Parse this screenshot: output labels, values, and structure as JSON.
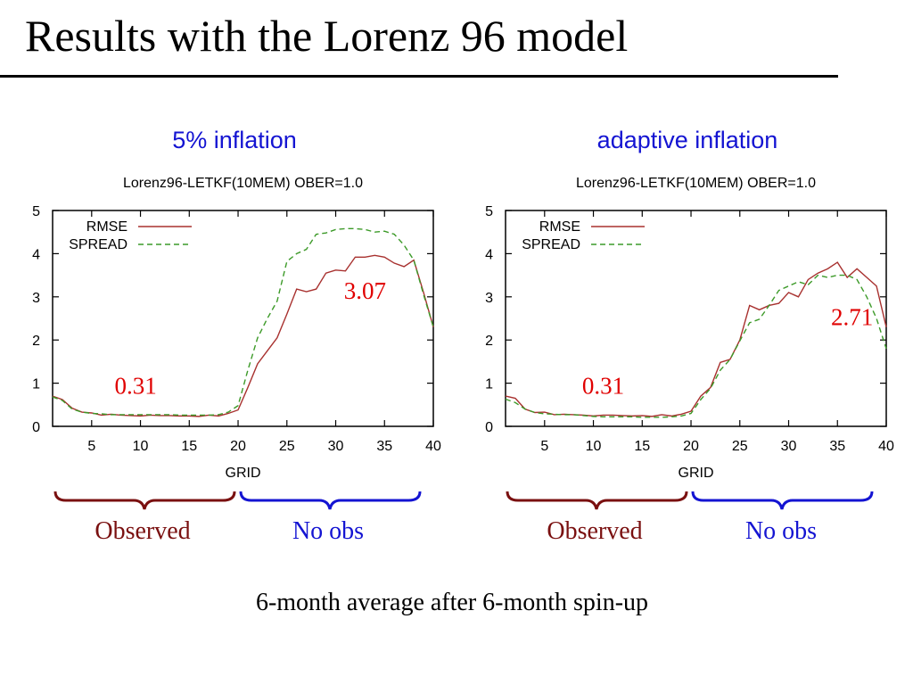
{
  "slide": {
    "title": "Results with the Lorenz 96 model",
    "footnote": "6-month average after 6-month spin-up"
  },
  "colors": {
    "rmse": "#a8312f",
    "spread": "#3c9a28",
    "heading": "#1414d2",
    "annotation": "#e00000",
    "observed": "#7a1010",
    "no_obs": "#1414d2"
  },
  "panels": [
    {
      "heading": "5% inflation",
      "annotations": [
        "0.31",
        "3.07"
      ],
      "region_labels": {
        "observed": "Observed",
        "no_obs": "No obs"
      }
    },
    {
      "heading": "adaptive inflation",
      "annotations": [
        "0.31",
        "2.71"
      ],
      "region_labels": {
        "observed": "Observed",
        "no_obs": "No obs"
      }
    }
  ],
  "chart_data": [
    {
      "type": "line",
      "title": "Lorenz96-LETKF(10MEM) OBER=1.0",
      "xlabel": "GRID",
      "ylabel": "",
      "xlim": [
        1,
        40
      ],
      "ylim": [
        0,
        5
      ],
      "xticks": [
        5,
        10,
        15,
        20,
        25,
        30,
        35,
        40
      ],
      "yticks": [
        0,
        1,
        2,
        3,
        4,
        5
      ],
      "grid": false,
      "legend": "top-left",
      "x": [
        1,
        2,
        3,
        4,
        5,
        6,
        7,
        8,
        9,
        10,
        11,
        12,
        13,
        14,
        15,
        16,
        17,
        18,
        19,
        20,
        21,
        22,
        23,
        24,
        25,
        26,
        27,
        28,
        29,
        30,
        31,
        32,
        33,
        34,
        35,
        36,
        37,
        38,
        39,
        40
      ],
      "series": [
        {
          "name": "RMSE",
          "values": [
            0.7,
            0.62,
            0.42,
            0.33,
            0.31,
            0.26,
            0.28,
            0.26,
            0.25,
            0.24,
            0.26,
            0.25,
            0.25,
            0.24,
            0.24,
            0.23,
            0.26,
            0.24,
            0.3,
            0.38,
            0.9,
            1.45,
            1.75,
            2.05,
            2.6,
            3.18,
            3.12,
            3.18,
            3.55,
            3.62,
            3.6,
            3.92,
            3.92,
            3.96,
            3.92,
            3.78,
            3.7,
            3.85,
            3.1,
            2.3
          ]
        },
        {
          "name": "SPREAD",
          "values": [
            0.68,
            0.6,
            0.4,
            0.33,
            0.3,
            0.29,
            0.27,
            0.27,
            0.27,
            0.27,
            0.27,
            0.27,
            0.27,
            0.26,
            0.26,
            0.26,
            0.26,
            0.27,
            0.33,
            0.48,
            1.3,
            2.05,
            2.5,
            2.9,
            3.82,
            4.0,
            4.1,
            4.45,
            4.48,
            4.56,
            4.58,
            4.58,
            4.56,
            4.5,
            4.52,
            4.45,
            4.2,
            3.85,
            3.05,
            2.3
          ]
        }
      ]
    },
    {
      "type": "line",
      "title": "Lorenz96-LETKF(10MEM) OBER=1.0",
      "xlabel": "GRID",
      "ylabel": "",
      "xlim": [
        1,
        40
      ],
      "ylim": [
        0,
        5
      ],
      "xticks": [
        5,
        10,
        15,
        20,
        25,
        30,
        35,
        40
      ],
      "yticks": [
        0,
        1,
        2,
        3,
        4,
        5
      ],
      "grid": false,
      "legend": "top-left",
      "x": [
        1,
        2,
        3,
        4,
        5,
        6,
        7,
        8,
        9,
        10,
        11,
        12,
        13,
        14,
        15,
        16,
        17,
        18,
        19,
        20,
        21,
        22,
        23,
        24,
        25,
        26,
        27,
        28,
        29,
        30,
        31,
        32,
        33,
        34,
        35,
        36,
        37,
        38,
        39,
        40
      ],
      "series": [
        {
          "name": "RMSE",
          "values": [
            0.7,
            0.65,
            0.4,
            0.32,
            0.33,
            0.27,
            0.28,
            0.27,
            0.26,
            0.24,
            0.26,
            0.26,
            0.25,
            0.24,
            0.25,
            0.23,
            0.27,
            0.24,
            0.28,
            0.35,
            0.7,
            0.9,
            1.48,
            1.55,
            2.0,
            2.8,
            2.7,
            2.8,
            2.85,
            3.1,
            3.0,
            3.4,
            3.55,
            3.65,
            3.8,
            3.45,
            3.65,
            3.45,
            3.25,
            2.3
          ]
        },
        {
          "name": "SPREAD",
          "values": [
            0.63,
            0.55,
            0.4,
            0.32,
            0.29,
            0.28,
            0.27,
            0.27,
            0.25,
            0.23,
            0.22,
            0.22,
            0.22,
            0.22,
            0.21,
            0.21,
            0.21,
            0.22,
            0.24,
            0.3,
            0.62,
            0.88,
            1.3,
            1.55,
            1.98,
            2.4,
            2.48,
            2.8,
            3.15,
            3.25,
            3.35,
            3.28,
            3.5,
            3.45,
            3.5,
            3.5,
            3.4,
            3.0,
            2.5,
            1.8
          ]
        }
      ]
    }
  ]
}
